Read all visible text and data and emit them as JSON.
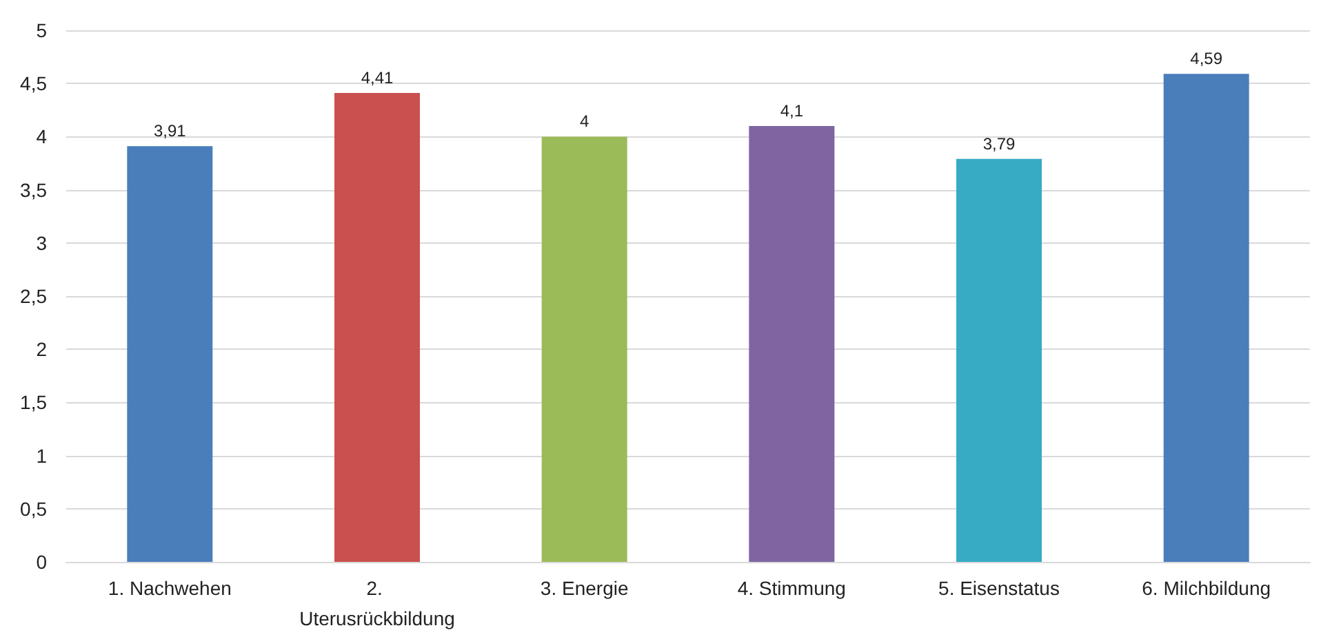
{
  "chart_data": {
    "type": "bar",
    "categories": [
      "1. Nachwehen",
      "2. Uterusrückbildung",
      "3. Energie",
      "4. Stimmung",
      "5. Eisenstatus",
      "6. Milchbildung"
    ],
    "values": [
      3.91,
      4.41,
      4,
      4.1,
      3.79,
      4.59
    ],
    "colors": [
      "#4a7ebb",
      "#c9504f",
      "#9bbb59",
      "#8064a2",
      "#37abc4",
      "#4a7ebb"
    ],
    "value_labels": [
      "3,91",
      "4,41",
      "4",
      "4,1",
      "3,79",
      "4,59"
    ],
    "ylim": [
      0,
      5
    ],
    "yticks": [
      0,
      {
        "value": 0.5,
        "label": "0,5"
      },
      1,
      {
        "value": 1.5,
        "label": "1,5"
      },
      2,
      {
        "value": 2.5,
        "label": "2,5"
      },
      3,
      {
        "value": 3.5,
        "label": "3,5"
      },
      4,
      {
        "value": 4.5,
        "label": "4,5"
      },
      5
    ],
    "grid": "y"
  }
}
